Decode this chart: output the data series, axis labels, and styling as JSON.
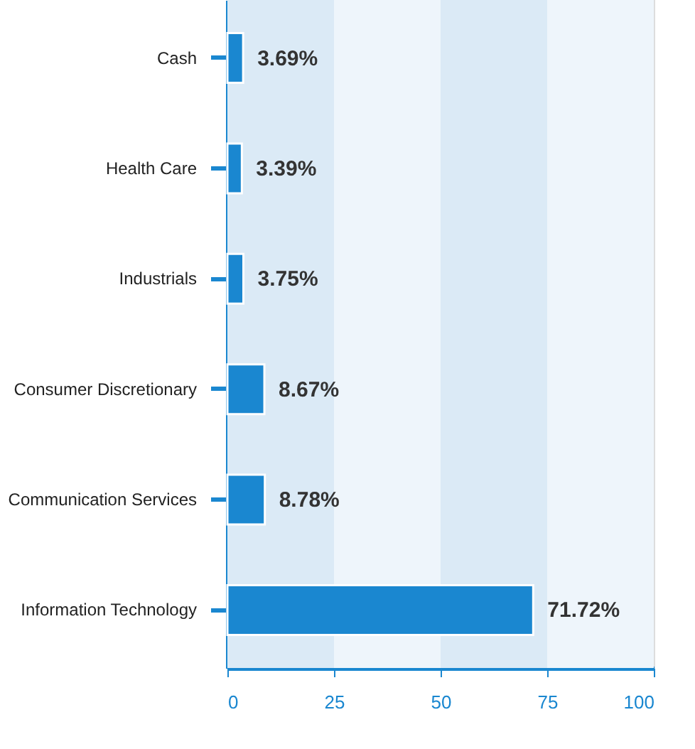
{
  "chart_data": {
    "type": "bar",
    "orientation": "horizontal",
    "categories": [
      "Cash",
      "Health Care",
      "Industrials",
      "Consumer Discretionary",
      "Communication Services",
      "Information Technology"
    ],
    "values": [
      3.69,
      3.39,
      3.75,
      8.67,
      8.78,
      71.72
    ],
    "value_labels": [
      "3.69%",
      "3.39%",
      "3.75%",
      "8.67%",
      "8.78%",
      "71.72%"
    ],
    "color": "#1a87d0",
    "xlim": [
      0,
      100
    ],
    "xticks": [
      0,
      25,
      50,
      75,
      100
    ],
    "bands": [
      {
        "axis": "x",
        "from": 0,
        "to": 25,
        "color": "#dbeaf6"
      },
      {
        "axis": "x",
        "from": 25,
        "to": 50,
        "color": "#eef5fb"
      },
      {
        "axis": "x",
        "from": 50,
        "to": 75,
        "color": "#dbeaf6"
      },
      {
        "axis": "x",
        "from": 75,
        "to": 100,
        "color": "#eef5fb"
      }
    ]
  }
}
